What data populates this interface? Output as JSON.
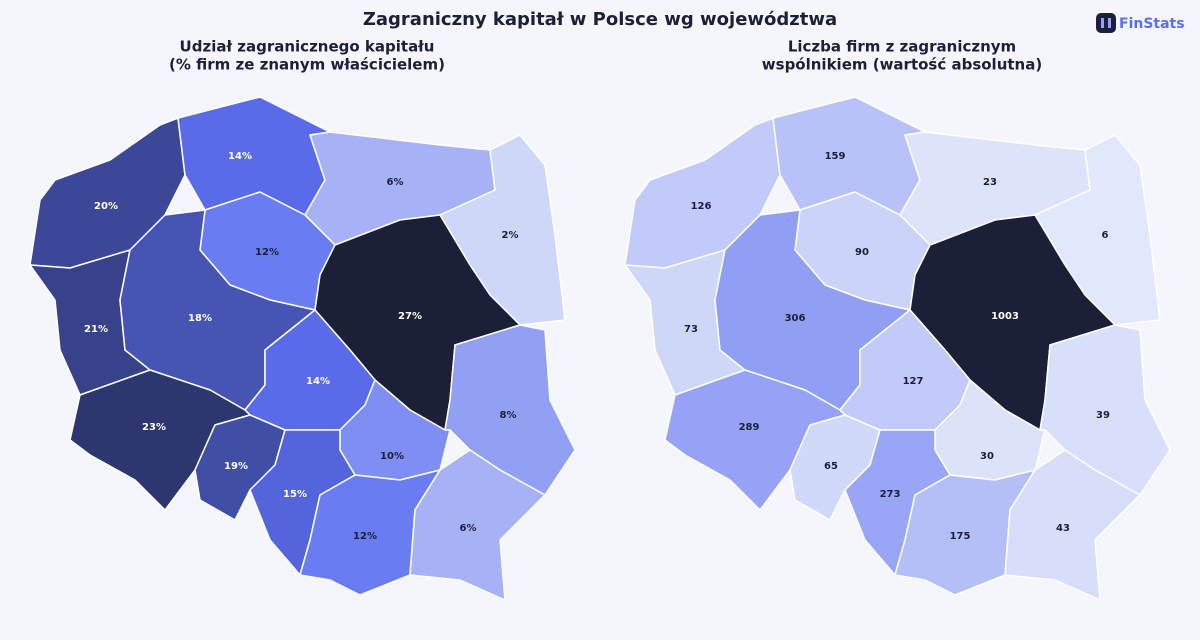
{
  "title": "Zagraniczny kapitał w Polsce wg województwa",
  "logo": "FinStats",
  "chart_data": [
    {
      "type": "choropleth",
      "title": [
        "Udział zagranicznego kapitału",
        "(% firm ze znanym właścicielem)"
      ],
      "values": [
        20,
        14,
        6,
        2,
        12,
        21,
        18,
        27,
        14,
        8,
        23,
        19,
        10,
        15,
        12,
        6
      ],
      "value_labels": [
        "20%",
        "14%",
        "6%",
        "2%",
        "12%",
        "21%",
        "18%",
        "27%",
        "14%",
        "8%",
        "23%",
        "19%",
        "10%",
        "15%",
        "12%",
        "6%"
      ],
      "colors": [
        "#e3e9fb",
        "#5b6ef0",
        "#1b1f38"
      ]
    },
    {
      "type": "choropleth",
      "title": [
        "Liczba firm z zagranicznym",
        "wspólnikiem (wartość absolutna)"
      ],
      "values": [
        126,
        159,
        23,
        6,
        90,
        73,
        306,
        1003,
        127,
        39,
        289,
        65,
        30,
        273,
        175,
        43
      ],
      "colors": [
        "#e3e9fb",
        "#5b6ef0",
        "#1b1f38"
      ]
    }
  ]
}
